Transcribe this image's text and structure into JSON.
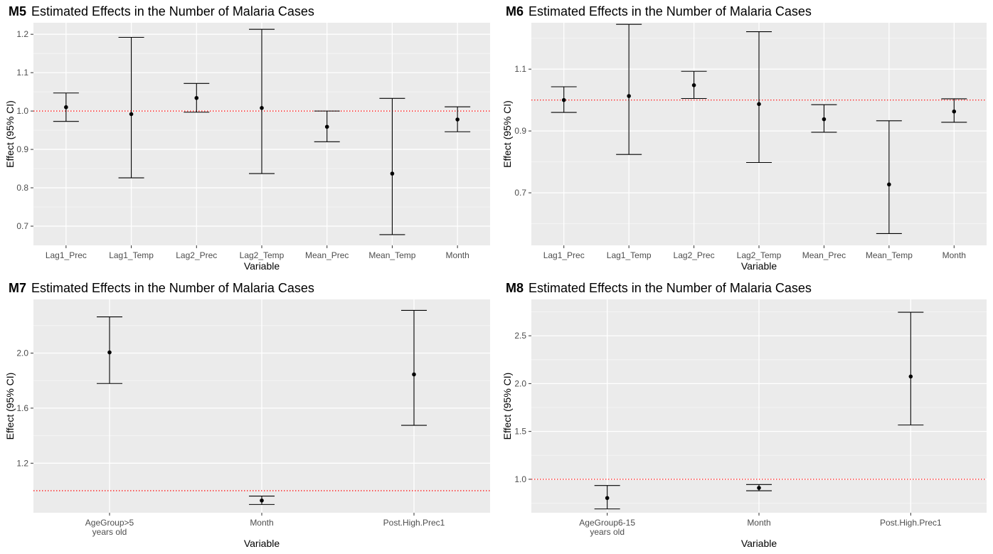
{
  "chart_data": [
    {
      "type": "errorbar",
      "tag": "M5",
      "title": "Estimated Effects in the Number of Malaria Cases",
      "xlabel": "Variable",
      "ylabel": "Effect (95% CI)",
      "ylim": [
        0.65,
        1.23
      ],
      "yticks": [
        0.7,
        0.8,
        0.9,
        1.0,
        1.1,
        1.2
      ],
      "ytick_labels": [
        "0.7",
        "0.8",
        "0.9",
        "1.0",
        "1.1",
        "1.2"
      ],
      "reference_line": 1.0,
      "categories": [
        [
          "Lag1_Prec"
        ],
        [
          "Lag1_Temp"
        ],
        [
          "Lag2_Prec"
        ],
        [
          "Lag2_Temp"
        ],
        [
          "Mean_Prec"
        ],
        [
          "Mean_Temp"
        ],
        [
          "Month"
        ]
      ],
      "points": [
        {
          "estimate": 1.01,
          "lower": 0.973,
          "upper": 1.047
        },
        {
          "estimate": 0.992,
          "lower": 0.826,
          "upper": 1.192
        },
        {
          "estimate": 1.034,
          "lower": 0.997,
          "upper": 1.072
        },
        {
          "estimate": 1.008,
          "lower": 0.837,
          "upper": 1.213
        },
        {
          "estimate": 0.959,
          "lower": 0.92,
          "upper": 1.0
        },
        {
          "estimate": 0.837,
          "lower": 0.678,
          "upper": 1.033
        },
        {
          "estimate": 0.978,
          "lower": 0.946,
          "upper": 1.011
        }
      ],
      "grid": true
    },
    {
      "type": "errorbar",
      "tag": "M6",
      "title": "Estimated Effects in the Number of Malaria Cases",
      "xlabel": "Variable",
      "ylabel": "Effect (95% CI)",
      "ylim": [
        0.53,
        1.25
      ],
      "yticks": [
        0.7,
        0.9,
        1.1
      ],
      "ytick_labels": [
        "0.7",
        "0.9",
        "1.1"
      ],
      "reference_line": 1.0,
      "categories": [
        [
          "Lag1_Prec"
        ],
        [
          "Lag1_Temp"
        ],
        [
          "Lag2_Prec"
        ],
        [
          "Lag2_Temp"
        ],
        [
          "Mean_Prec"
        ],
        [
          "Mean_Temp"
        ],
        [
          "Month"
        ]
      ],
      "points": [
        {
          "estimate": 1.0,
          "lower": 0.96,
          "upper": 1.043
        },
        {
          "estimate": 1.013,
          "lower": 0.824,
          "upper": 1.245
        },
        {
          "estimate": 1.048,
          "lower": 1.005,
          "upper": 1.093
        },
        {
          "estimate": 0.987,
          "lower": 0.798,
          "upper": 1.221
        },
        {
          "estimate": 0.938,
          "lower": 0.896,
          "upper": 0.985
        },
        {
          "estimate": 0.727,
          "lower": 0.568,
          "upper": 0.933
        },
        {
          "estimate": 0.963,
          "lower": 0.928,
          "upper": 1.004
        }
      ],
      "grid": true
    },
    {
      "type": "errorbar",
      "tag": "M7",
      "title": "Estimated Effects in the Number of Malaria Cases",
      "xlabel": "Variable",
      "ylabel": "Effect (95% CI)",
      "ylim": [
        0.84,
        2.39
      ],
      "yticks": [
        1.2,
        1.6,
        2.0
      ],
      "ytick_labels": [
        "1.2",
        "1.6",
        "2.0"
      ],
      "reference_line": 1.0,
      "categories": [
        [
          "AgeGroup>5",
          "years old"
        ],
        [
          "Month"
        ],
        [
          "Post.High.Prec1"
        ]
      ],
      "points": [
        {
          "estimate": 2.005,
          "lower": 1.779,
          "upper": 2.263
        },
        {
          "estimate": 0.929,
          "lower": 0.9,
          "upper": 0.961
        },
        {
          "estimate": 1.845,
          "lower": 1.475,
          "upper": 2.31
        }
      ],
      "grid": true
    },
    {
      "type": "errorbar",
      "tag": "M8",
      "title": "Estimated Effects in the Number of Malaria Cases",
      "xlabel": "Variable",
      "ylabel": "Effect (95% CI)",
      "ylim": [
        0.65,
        2.88
      ],
      "yticks": [
        1.0,
        1.5,
        2.0,
        2.5
      ],
      "ytick_labels": [
        "1.0",
        "1.5",
        "2.0",
        "2.5"
      ],
      "reference_line": 1.0,
      "categories": [
        [
          "AgeGroup6-15",
          "years old"
        ],
        [
          "Month"
        ],
        [
          "Post.High.Prec1"
        ]
      ],
      "points": [
        {
          "estimate": 0.804,
          "lower": 0.69,
          "upper": 0.935
        },
        {
          "estimate": 0.91,
          "lower": 0.88,
          "upper": 0.945
        },
        {
          "estimate": 2.074,
          "lower": 1.567,
          "upper": 2.746
        }
      ],
      "grid": true
    }
  ],
  "colors": {
    "panel_background": "#ebebeb",
    "grid_major": "#ffffff",
    "grid_minor": "#f5f5f5",
    "reference_line": "#ff0000",
    "marks": "#000000"
  }
}
